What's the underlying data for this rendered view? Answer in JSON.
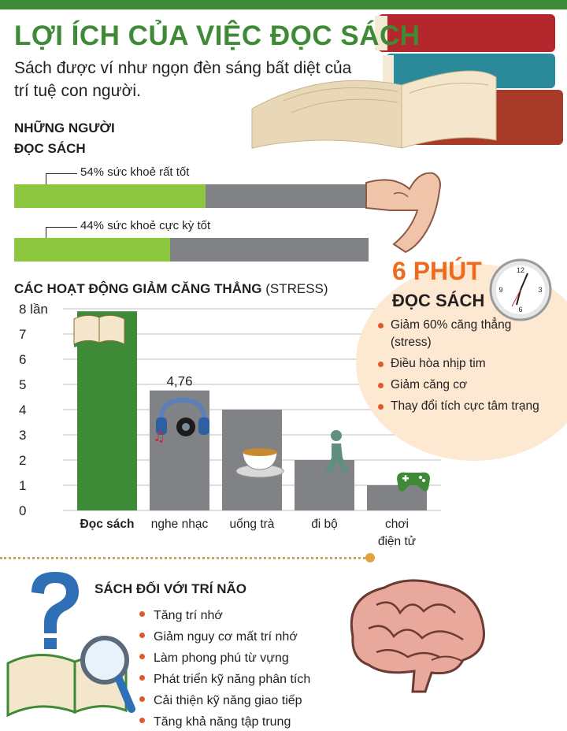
{
  "header": {
    "title": "LỢI ÍCH CỦA VIỆC ĐỌC SÁCH",
    "subtitle": "Sách được ví như ngọn đèn sáng bất diệt của trí tuệ con người."
  },
  "readers": {
    "heading_line1": "NHỮNG NGƯỜI",
    "heading_line2": "ĐỌC SÁCH",
    "bars": [
      {
        "label": "54% sức khoẻ rất tốt",
        "value": 54
      },
      {
        "label": "44% sức khoẻ cực kỳ tốt",
        "value": 44
      }
    ]
  },
  "stress": {
    "heading_bold": "CÁC HOẠT ĐỘNG GIẢM CĂNG THẲNG",
    "heading_normal": "(STRESS)"
  },
  "chart_data": {
    "type": "bar",
    "categories": [
      "Đọc sách",
      "nghe nhạc",
      "uống trà",
      "đi bộ",
      "chơi điện tử"
    ],
    "values": [
      7.9,
      4.76,
      4.0,
      2.0,
      1.0
    ],
    "data_labels": [
      "",
      "4,76",
      "",
      "",
      ""
    ],
    "yticks": [
      "0",
      "1",
      "2",
      "3",
      "4",
      "5",
      "6",
      "7",
      "8 lần"
    ],
    "ylim": [
      0,
      8
    ],
    "grid": true,
    "highlight_color": "#3f8a36",
    "bar_color": "#808285"
  },
  "six_minutes": {
    "title": "6 PHÚT",
    "subtitle": "ĐỌC SÁCH",
    "benefits": [
      "Giảm 60% căng thẳng (stress)",
      "Điều hòa nhịp tim",
      "Giảm căng cơ",
      "Thay đổi tích cực tâm trạng"
    ],
    "clock_numbers": [
      "12",
      "3",
      "6",
      "9"
    ]
  },
  "brain": {
    "heading": "SÁCH ĐỐI VỚI TRÍ NÃO",
    "items": [
      "Tăng trí nhớ",
      "Giảm nguy cơ mất trí nhớ",
      "Làm phong phú từ vựng",
      "Phát triển kỹ năng phân tích",
      "Cải thiện kỹ năng giao tiếp",
      "Tăng khả năng tập trung"
    ]
  },
  "colors": {
    "green": "#3f8a36",
    "light_green": "#8dc63f",
    "gray": "#808285",
    "orange": "#ee6b1e",
    "peach": "#fde8d2"
  },
  "icons": [
    "books-stack-icon",
    "flexed-arm-icon",
    "clock-icon",
    "open-book-icon",
    "headphones-icon",
    "tea-cup-icon",
    "walking-person-icon",
    "gamepad-icon",
    "question-mark-icon",
    "magnifier-icon",
    "brain-icon"
  ]
}
